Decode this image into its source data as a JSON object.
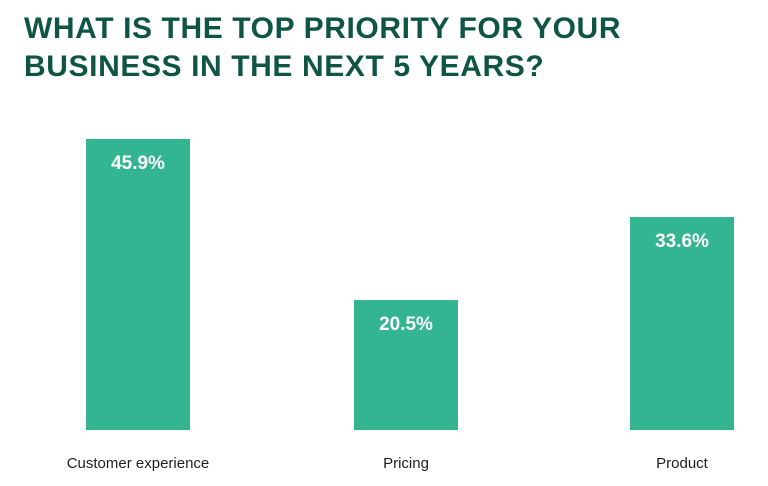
{
  "chart_data": {
    "type": "bar",
    "title": "WHAT IS THE TOP PRIORITY FOR YOUR BUSINESS IN THE NEXT 5 YEARS?",
    "categories": [
      "Customer experience",
      "Pricing",
      "Product"
    ],
    "values": [
      45.9,
      20.5,
      33.6
    ],
    "value_labels": [
      "45.9%",
      "20.5%",
      "33.6%"
    ],
    "unit": "%",
    "ylim": [
      0,
      45.9
    ],
    "grid": false,
    "legend": "none"
  },
  "colors": {
    "bar": "#33b592",
    "title": "#0f5546",
    "value_label": "#ffffff"
  }
}
